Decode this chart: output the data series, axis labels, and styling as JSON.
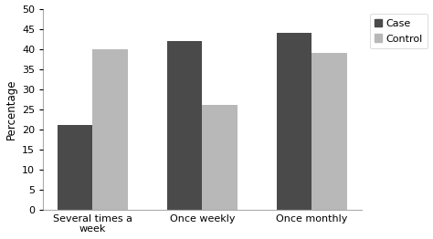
{
  "categories": [
    "Several times a\nweek",
    "Once weekly",
    "Once monthly"
  ],
  "case_values": [
    21,
    42,
    44
  ],
  "control_values": [
    40,
    26,
    39
  ],
  "case_color": "#4a4a4a",
  "control_color": "#b8b8b8",
  "ylabel": "Percentage",
  "ylim": [
    0,
    50
  ],
  "yticks": [
    0,
    5,
    10,
    15,
    20,
    25,
    30,
    35,
    40,
    45,
    50
  ],
  "legend_labels": [
    "Case",
    "Control"
  ],
  "bar_width": 0.32
}
